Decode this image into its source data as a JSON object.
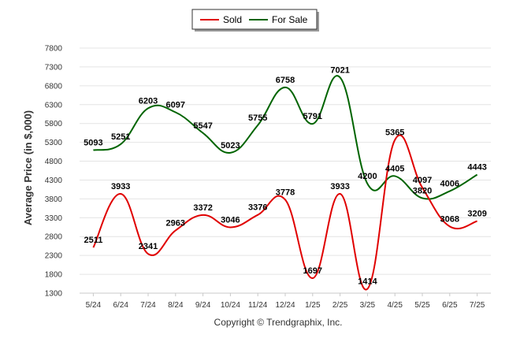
{
  "chart_data": {
    "type": "line",
    "categories": [
      "5/24",
      "6/24",
      "7/24",
      "8/24",
      "9/24",
      "10/24",
      "11/24",
      "12/24",
      "1/25",
      "2/25",
      "3/25",
      "4/25",
      "5/25",
      "6/25",
      "7/25"
    ],
    "series": [
      {
        "name": "Sold",
        "color": "#e00000",
        "values": [
          2511,
          3933,
          2341,
          2963,
          3372,
          3046,
          3376,
          3778,
          1697,
          3933,
          1414,
          5365,
          4097,
          3068,
          3209
        ]
      },
      {
        "name": "For Sale",
        "color": "#006400",
        "values": [
          5093,
          5251,
          6203,
          6097,
          5547,
          5023,
          5755,
          6758,
          5791,
          7021,
          4200,
          4405,
          3820,
          4006,
          4443
        ]
      }
    ],
    "ylabel": "Average Price (in $,000)",
    "yticks": [
      1300,
      1800,
      2300,
      2800,
      3300,
      3800,
      4300,
      4800,
      5300,
      5800,
      6300,
      6800,
      7300,
      7800
    ],
    "ylim": [
      1300,
      7800
    ],
    "grid": true,
    "legend_position": "top-center"
  },
  "credit": "Copyright © Trendgraphix, Inc."
}
